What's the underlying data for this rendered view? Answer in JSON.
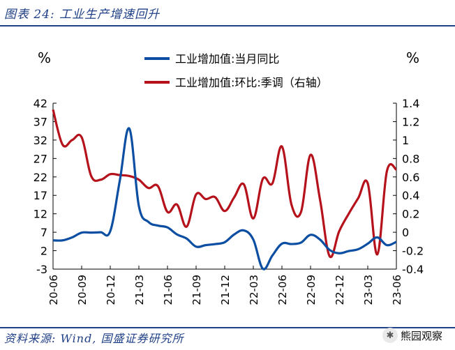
{
  "figure": {
    "title": "图表 24:  工业生产增速回升",
    "source": "资料来源:  Wind,  国盛证券研究所",
    "watermark": "熊园观察",
    "watermark_icon": "wechat-icon"
  },
  "colors": {
    "series1": "#0b4ea2",
    "series2": "#b5121b",
    "axis": "#000000"
  },
  "chart_data": {
    "type": "line",
    "left_unit": "%",
    "right_unit": "%",
    "legend": [
      "工业增加值:当月同比",
      "工业增加值:环比:季调（右轴）"
    ],
    "ylim_left": [
      -3,
      42
    ],
    "ylim_right": [
      -0.4,
      1.4
    ],
    "yticks_left": [
      "42",
      "37",
      "32",
      "27",
      "22",
      "17",
      "12",
      "7",
      "2",
      "-3"
    ],
    "yticks_right": [
      "1.4",
      "1.2",
      "1",
      "0.8",
      "0.6",
      "0.4",
      "0.2",
      "0",
      "-0.2",
      "-0.4"
    ],
    "xticks": [
      "20-06",
      "20-09",
      "20-12",
      "21-03",
      "21-06",
      "21-09",
      "21-12",
      "22-03",
      "22-06",
      "22-09",
      "22-12",
      "23-03",
      "23-06"
    ],
    "x": [
      "20-06",
      "20-07",
      "20-08",
      "20-09",
      "20-10",
      "20-11",
      "20-12",
      "21-01",
      "21-02",
      "21-03",
      "21-04",
      "21-05",
      "21-06",
      "21-07",
      "21-08",
      "21-09",
      "21-10",
      "21-11",
      "21-12",
      "22-01",
      "22-02",
      "22-03",
      "22-04",
      "22-05",
      "22-06",
      "22-07",
      "22-08",
      "22-09",
      "22-10",
      "22-11",
      "22-12",
      "23-01",
      "23-02",
      "23-03",
      "23-04",
      "23-05",
      "23-06"
    ],
    "series": [
      {
        "name": "工业增加值:当月同比",
        "axis": "left",
        "values": [
          4.8,
          4.8,
          5.6,
          6.9,
          6.9,
          7.0,
          7.3,
          21.0,
          35.1,
          14.1,
          9.8,
          8.8,
          8.3,
          6.4,
          5.3,
          3.1,
          3.5,
          3.8,
          4.3,
          6.4,
          7.5,
          5.0,
          -2.9,
          0.7,
          3.9,
          3.8,
          4.2,
          6.3,
          5.0,
          2.2,
          1.3,
          1.9,
          2.4,
          3.9,
          5.6,
          3.5,
          4.4
        ]
      },
      {
        "name": "工业增加值:环比:季调（右轴）",
        "axis": "right",
        "values": [
          1.33,
          0.95,
          1.0,
          1.03,
          0.61,
          0.57,
          0.63,
          0.62,
          0.61,
          0.57,
          0.48,
          0.5,
          0.22,
          0.3,
          0.06,
          0.41,
          0.36,
          0.38,
          0.23,
          0.38,
          0.52,
          0.15,
          0.58,
          0.53,
          0.93,
          0.3,
          0.22,
          0.84,
          0.35,
          -0.26,
          0.01,
          0.2,
          0.37,
          0.53,
          -0.24,
          0.66,
          0.68
        ]
      }
    ]
  }
}
